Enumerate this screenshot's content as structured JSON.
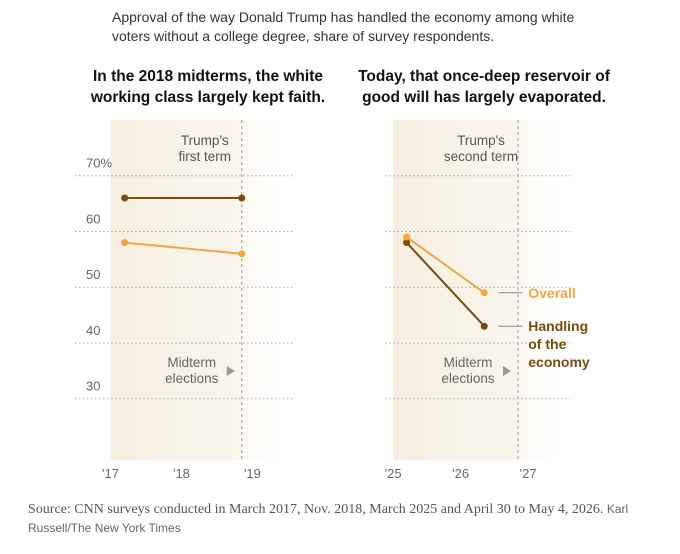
{
  "description": "Approval of the way Donald Trump has handled the economy among white voters without a college degree, share of survey respondents.",
  "chart_data": [
    {
      "type": "line",
      "title": "In the 2018 midterms, the white working class largely kept faith.",
      "period_label": [
        "Trump's",
        "first term"
      ],
      "event_label": [
        "Midterm",
        "elections"
      ],
      "event_x": 2018.85,
      "x": [
        2017.2,
        2018.85
      ],
      "series": [
        {
          "color": "#7a4a0f",
          "values": [
            66,
            66
          ]
        },
        {
          "color": "#f2a541",
          "values": [
            58,
            56
          ]
        }
      ],
      "xlim": [
        2016.5,
        2019.6
      ],
      "xticks": [
        {
          "value": 2017,
          "label": "'17"
        },
        {
          "value": 2018,
          "label": "'18"
        },
        {
          "value": 2019,
          "label": "'19"
        }
      ],
      "ylim": [
        19,
        80
      ],
      "yticks": [
        {
          "value": 70,
          "label": "70%"
        },
        60,
        50,
        40,
        30
      ],
      "grid": true
    },
    {
      "type": "line",
      "title": "Today, that once-deep reservoir of good will has largely evaporated.",
      "period_label": [
        "Trump's",
        "second term"
      ],
      "event_label": [
        "Midterm",
        "elections"
      ],
      "event_x": 2026.85,
      "x": [
        2025.2,
        2026.35
      ],
      "series": [
        {
          "name": "Handling of the economy",
          "color": "#7a4a0f",
          "values": [
            58,
            43
          ]
        },
        {
          "name": "Overall",
          "color": "#f2a541",
          "values": [
            59,
            49
          ]
        }
      ],
      "xlim": [
        2024.88,
        2027.62
      ],
      "xticks": [
        {
          "value": 2025,
          "label": "'25"
        },
        {
          "value": 2026,
          "label": "'26"
        },
        {
          "value": 2027,
          "label": "'27"
        }
      ],
      "ylim": [
        19,
        80
      ],
      "yticks": [
        70,
        60,
        50,
        40,
        30
      ],
      "grid": true
    }
  ],
  "source": "Source: CNN surveys conducted in March 2017, Nov. 2018, March 2025 and April 30 to May 4, 2026.",
  "credit": "Karl Russell/The New York Times"
}
